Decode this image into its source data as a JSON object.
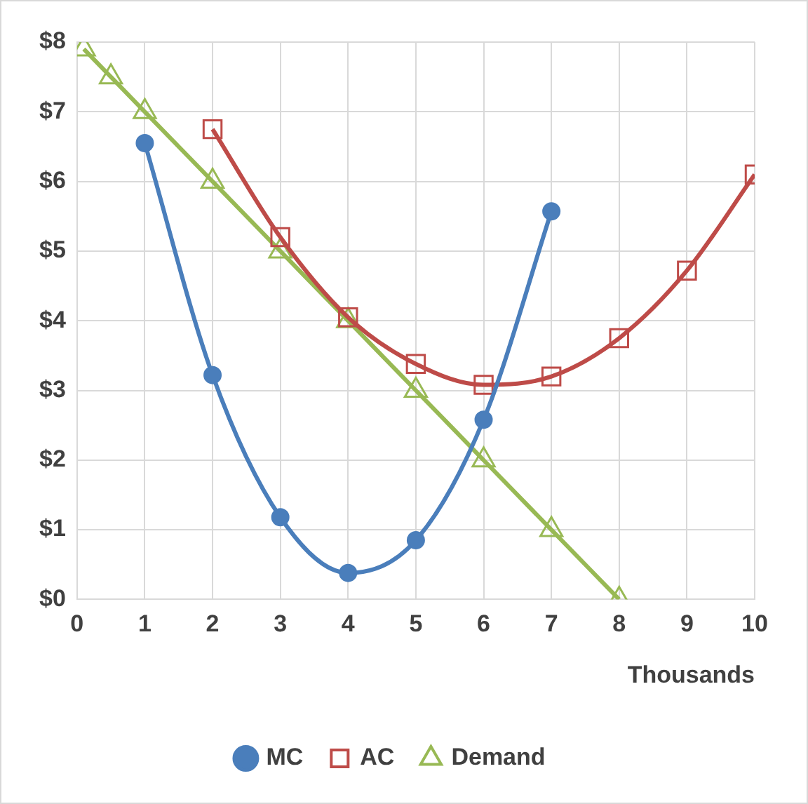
{
  "chart_data": {
    "type": "line",
    "xlabel": "Thousands",
    "series": [
      {
        "name": "MC",
        "color": "#4a7ebb",
        "marker": "circle",
        "x": [
          1,
          2,
          3,
          4,
          5,
          6,
          7
        ],
        "values": [
          6.55,
          3.22,
          1.18,
          0.38,
          0.85,
          2.58,
          5.57
        ]
      },
      {
        "name": "AC",
        "color": "#be4b48",
        "marker": "square",
        "x": [
          2,
          3,
          4,
          5,
          6,
          7,
          8,
          9,
          10
        ],
        "values": [
          6.75,
          5.2,
          4.05,
          3.38,
          3.08,
          3.2,
          3.75,
          4.72,
          6.1
        ]
      },
      {
        "name": "Demand",
        "color": "#98b954",
        "marker": "triangle",
        "x": [
          0.1,
          0.5,
          1,
          2,
          3,
          4,
          5,
          6,
          7,
          8
        ],
        "values": [
          7.9,
          7.5,
          7,
          6,
          5,
          4,
          3,
          2,
          1,
          0
        ]
      }
    ],
    "xlim": [
      0,
      10
    ],
    "xticks": [
      0,
      1,
      2,
      3,
      4,
      5,
      6,
      7,
      8,
      9,
      10
    ],
    "ylim": [
      0,
      8
    ],
    "yticks": [
      {
        "value": 0,
        "label": "$0"
      },
      {
        "value": 1,
        "label": "$1"
      },
      {
        "value": 2,
        "label": "$2"
      },
      {
        "value": 3,
        "label": "$3"
      },
      {
        "value": 4,
        "label": "$4"
      },
      {
        "value": 5,
        "label": "$5"
      },
      {
        "value": 6,
        "label": "$6"
      },
      {
        "value": 7,
        "label": "$7"
      },
      {
        "value": 8,
        "label": "$8"
      }
    ],
    "grid": true,
    "legend": "bottom"
  }
}
